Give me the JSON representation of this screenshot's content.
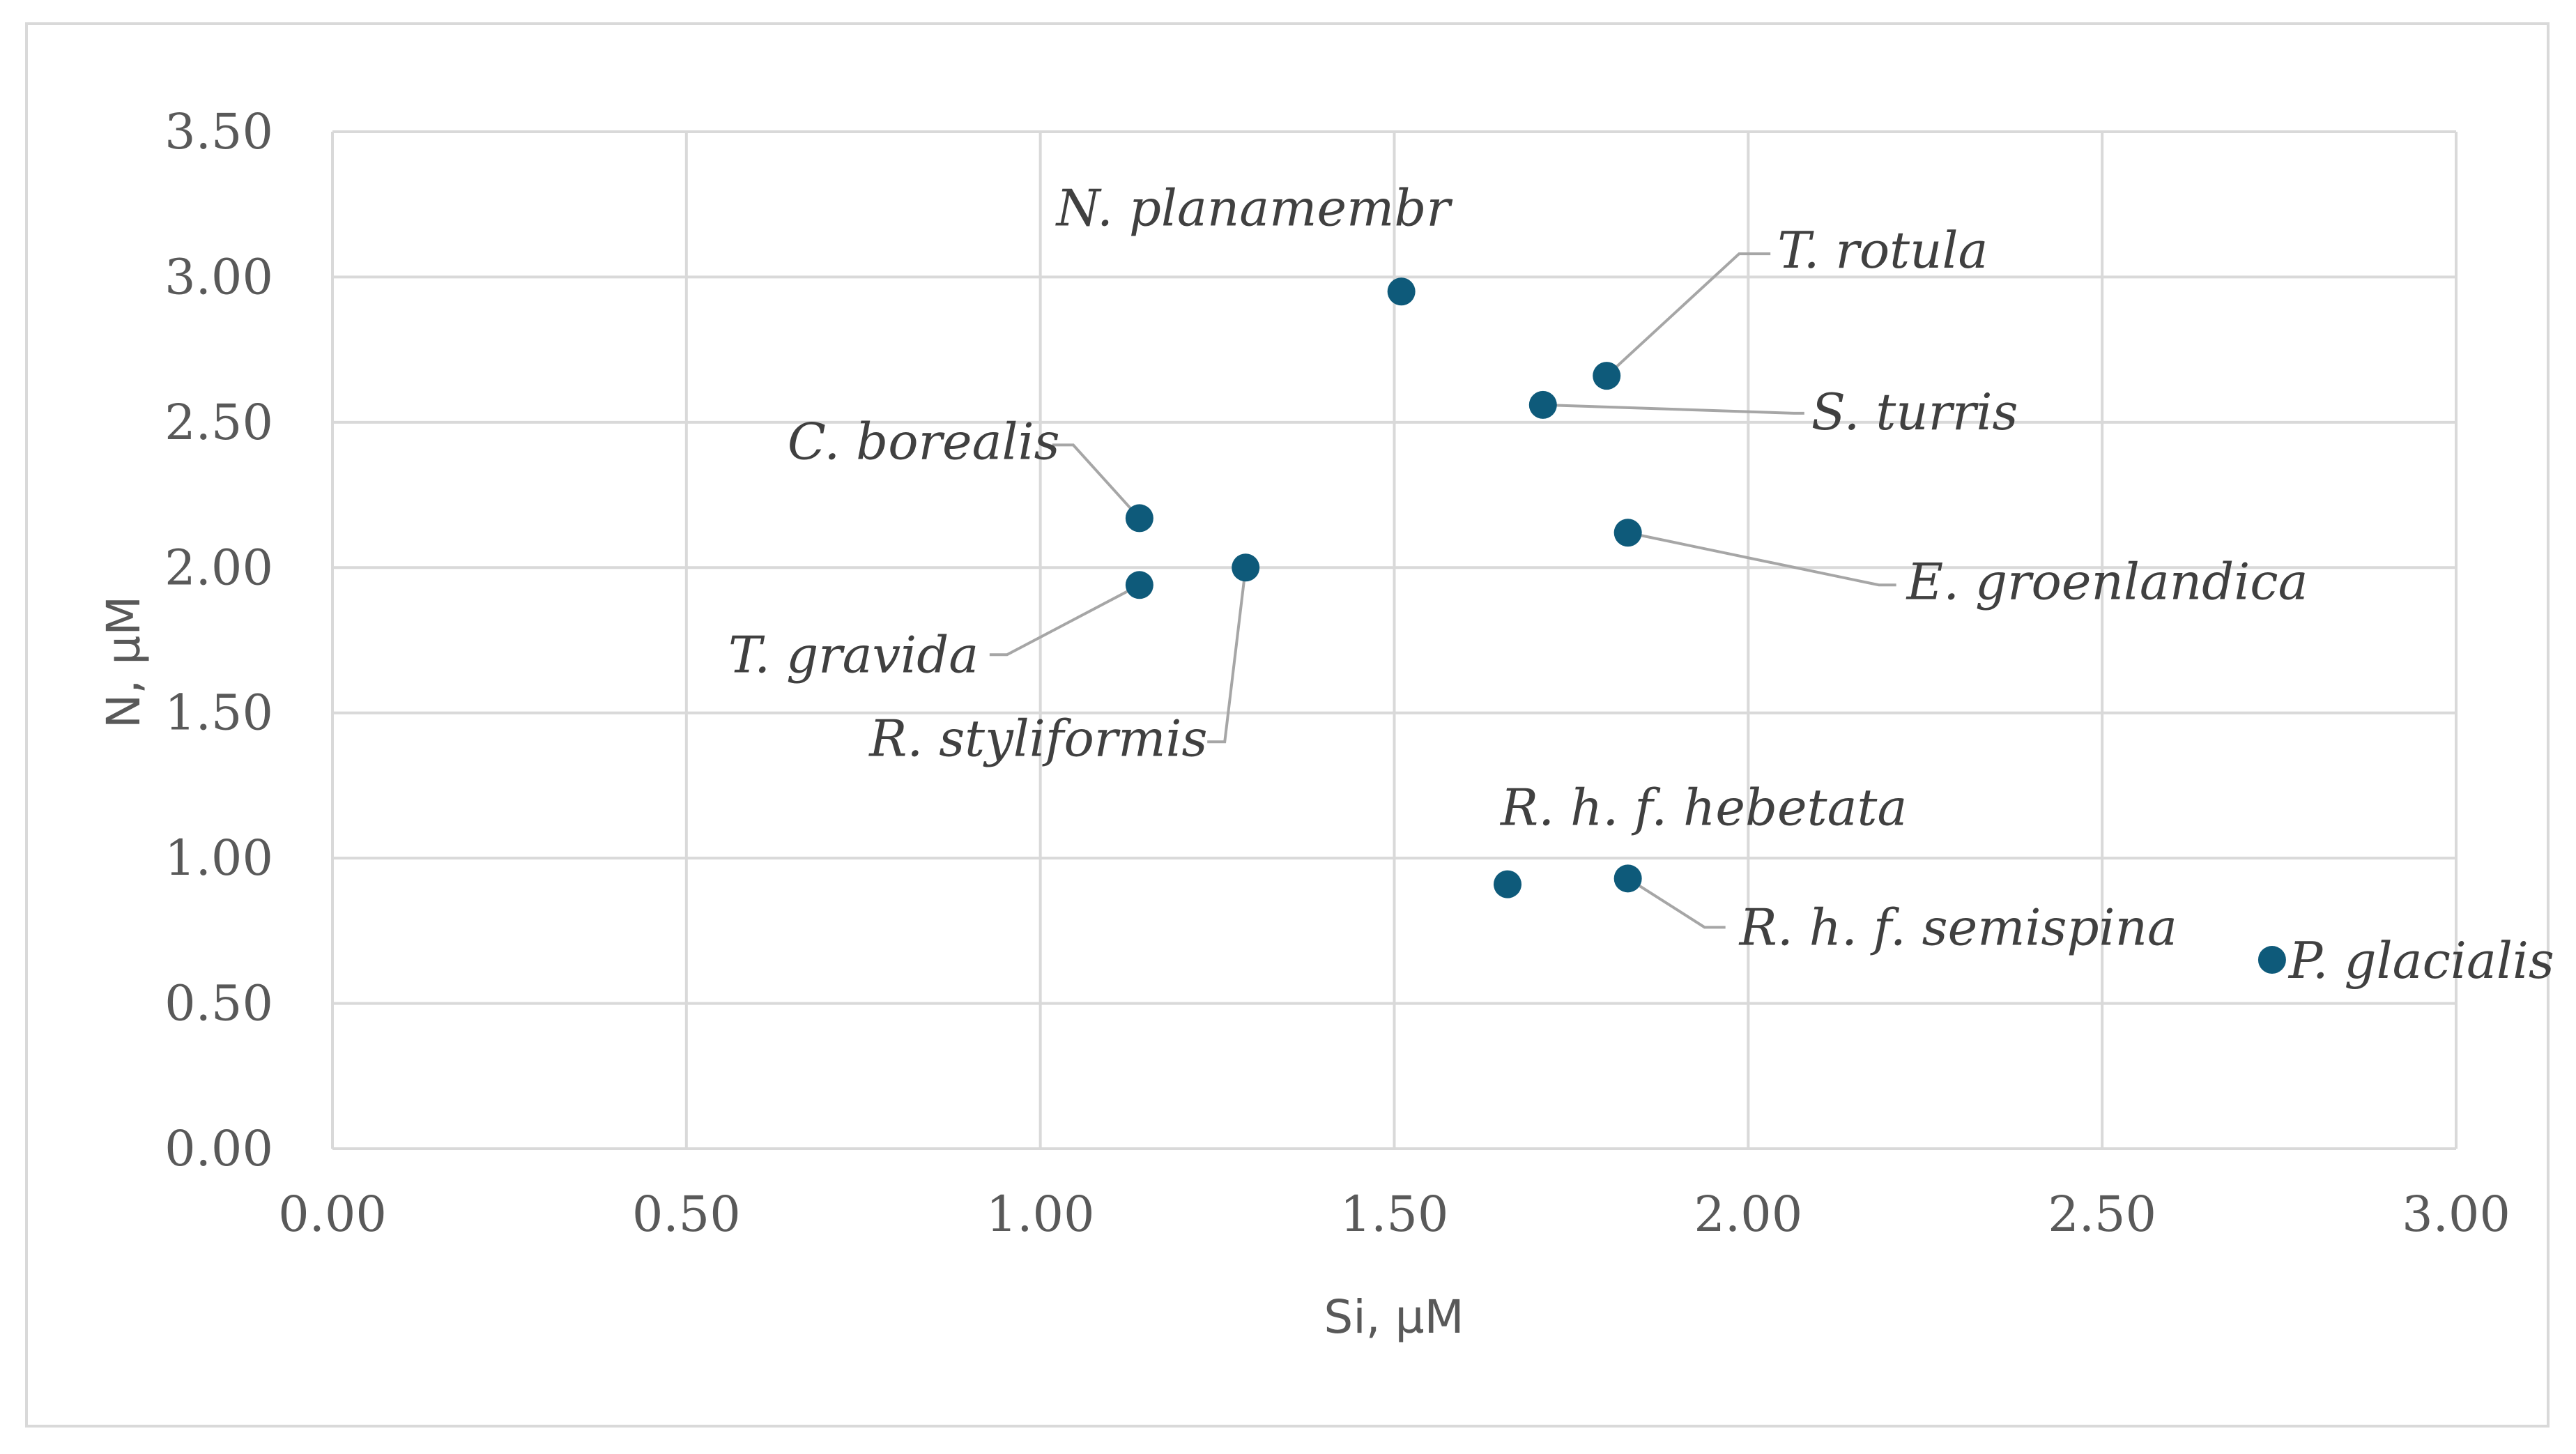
{
  "chart_data": {
    "type": "scatter",
    "title": "",
    "xlabel": "Si, µM",
    "ylabel": "N, µM",
    "xlim": [
      0,
      3
    ],
    "ylim": [
      0,
      3.5
    ],
    "grid": true,
    "legend": "none",
    "marker_color": "#0e5a7a",
    "x_ticks": [
      "0.00",
      "0.50",
      "1.00",
      "1.50",
      "2.00",
      "2.50",
      "3.00"
    ],
    "y_ticks": [
      "0.00",
      "0.50",
      "1.00",
      "1.50",
      "2.00",
      "2.50",
      "3.00",
      "3.50"
    ],
    "points": [
      {
        "label": "N. planamembr",
        "x": 1.51,
        "y": 2.95
      },
      {
        "label": "T. rotula",
        "x": 1.8,
        "y": 2.66
      },
      {
        "label": "S. turris",
        "x": 1.71,
        "y": 2.56
      },
      {
        "label": "C. borealis",
        "x": 1.14,
        "y": 2.17
      },
      {
        "label": "E. groenlandica",
        "x": 1.83,
        "y": 2.12
      },
      {
        "label": "R. styliformis",
        "x": 1.29,
        "y": 2.0
      },
      {
        "label": "T. gravida",
        "x": 1.14,
        "y": 1.94
      },
      {
        "label": "R. h. f. hebetata",
        "x": 1.66,
        "y": 0.91
      },
      {
        "label": "R. h. f. semispina",
        "x": 1.83,
        "y": 0.93
      },
      {
        "label": "P. glacialis",
        "x": 2.74,
        "y": 0.65
      }
    ]
  }
}
